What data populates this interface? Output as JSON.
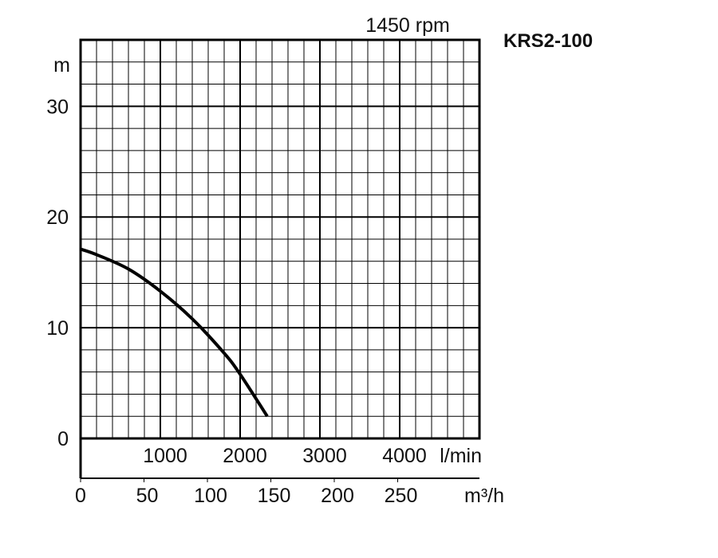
{
  "chart_data": {
    "type": "line",
    "title": "KRS2-100",
    "subtitle": "1450 rpm",
    "ylabel": "m",
    "xlabel": "l/min",
    "x2label": "m³/h",
    "ylim": [
      0,
      36
    ],
    "xlim": [
      0,
      5000
    ],
    "x2lim": [
      0,
      300
    ],
    "yticks": [
      "0",
      "10",
      "20",
      "30"
    ],
    "ytick_values": [
      0,
      10,
      20,
      30
    ],
    "xticks": [
      "1000",
      "2000",
      "3000",
      "4000"
    ],
    "xtick_values": [
      1000,
      2000,
      3000,
      4000
    ],
    "x2ticks": [
      "0",
      "50",
      "100",
      "150",
      "200",
      "250"
    ],
    "x2tick_values": [
      0,
      50,
      100,
      150,
      200,
      250
    ],
    "grid": true,
    "series": [
      {
        "name": "KRS2-100 head curve",
        "color": "#000000",
        "x": [
          0,
          200,
          600,
          1000,
          1400,
          1800,
          2000,
          2340
        ],
        "y": [
          17.1,
          16.6,
          15.3,
          13.3,
          10.8,
          7.7,
          5.8,
          2.0
        ]
      }
    ]
  }
}
